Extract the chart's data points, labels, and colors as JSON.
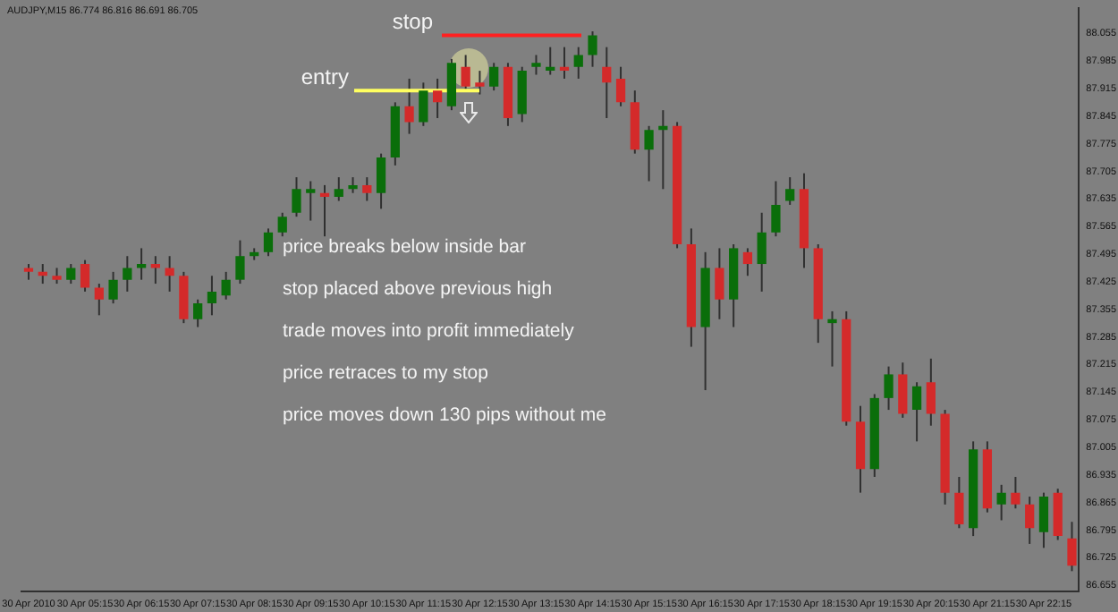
{
  "chart_data": {
    "type": "candlestick",
    "title": "AUDJPY,M15 86.774 86.816 86.691 86.705",
    "categories": [
      "30 Apr 2010",
      null,
      null,
      null,
      "30 Apr 05:15",
      null,
      null,
      null,
      "30 Apr 06:15",
      null,
      null,
      null,
      "30 Apr 07:15",
      null,
      null,
      null,
      "30 Apr 08:15",
      null,
      null,
      null,
      "30 Apr 09:15",
      null,
      null,
      null,
      "30 Apr 10:15",
      null,
      null,
      null,
      "30 Apr 11:15",
      null,
      null,
      null,
      "30 Apr 12:15",
      null,
      null,
      null,
      "30 Apr 13:15",
      null,
      null,
      null,
      "30 Apr 14:15",
      null,
      null,
      null,
      "30 Apr 15:15",
      null,
      null,
      null,
      "30 Apr 16:15",
      null,
      null,
      null,
      "30 Apr 17:15",
      null,
      null,
      null,
      "30 Apr 18:15",
      null,
      null,
      null,
      "30 Apr 19:15",
      null,
      null,
      null,
      "30 Apr 20:15",
      null,
      null,
      null,
      "30 Apr 21:15",
      null,
      null,
      null,
      "30 Apr 22:15",
      null,
      null
    ],
    "ohlc": [
      [
        87.46,
        87.47,
        87.43,
        87.45
      ],
      [
        87.45,
        87.47,
        87.42,
        87.44
      ],
      [
        87.44,
        87.46,
        87.42,
        87.43
      ],
      [
        87.43,
        87.47,
        87.42,
        87.46
      ],
      [
        87.47,
        87.48,
        87.4,
        87.41
      ],
      [
        87.41,
        87.42,
        87.34,
        87.38
      ],
      [
        87.38,
        87.45,
        87.37,
        87.43
      ],
      [
        87.43,
        87.49,
        87.4,
        87.46
      ],
      [
        87.46,
        87.51,
        87.43,
        87.47
      ],
      [
        87.47,
        87.49,
        87.42,
        87.46
      ],
      [
        87.46,
        87.49,
        87.4,
        87.44
      ],
      [
        87.44,
        87.45,
        87.32,
        87.33
      ],
      [
        87.33,
        87.38,
        87.31,
        87.37
      ],
      [
        87.37,
        87.44,
        87.34,
        87.4
      ],
      [
        87.39,
        87.45,
        87.38,
        87.43
      ],
      [
        87.43,
        87.53,
        87.42,
        87.49
      ],
      [
        87.49,
        87.51,
        87.48,
        87.5
      ],
      [
        87.5,
        87.56,
        87.49,
        87.55
      ],
      [
        87.55,
        87.6,
        87.54,
        87.59
      ],
      [
        87.6,
        87.69,
        87.59,
        87.66
      ],
      [
        87.65,
        87.68,
        87.58,
        87.66
      ],
      [
        87.65,
        87.67,
        87.54,
        87.64
      ],
      [
        87.64,
        87.69,
        87.63,
        87.66
      ],
      [
        87.66,
        87.69,
        87.65,
        87.67
      ],
      [
        87.67,
        87.69,
        87.63,
        87.65
      ],
      [
        87.65,
        87.75,
        87.61,
        87.74
      ],
      [
        87.74,
        87.88,
        87.72,
        87.87
      ],
      [
        87.87,
        87.94,
        87.8,
        87.83
      ],
      [
        87.83,
        87.93,
        87.82,
        87.91
      ],
      [
        87.91,
        87.94,
        87.84,
        87.88
      ],
      [
        87.87,
        87.99,
        87.86,
        87.98
      ],
      [
        87.97,
        88.0,
        87.91,
        87.92
      ],
      [
        87.93,
        87.96,
        87.9,
        87.92
      ],
      [
        87.92,
        87.98,
        87.91,
        87.97
      ],
      [
        87.97,
        87.98,
        87.82,
        87.84
      ],
      [
        87.85,
        87.97,
        87.83,
        87.96
      ],
      [
        87.97,
        88.0,
        87.95,
        87.98
      ],
      [
        87.96,
        88.02,
        87.95,
        87.97
      ],
      [
        87.97,
        88.02,
        87.94,
        87.96
      ],
      [
        87.97,
        88.02,
        87.94,
        88.0
      ],
      [
        88.0,
        88.06,
        87.97,
        88.05
      ],
      [
        87.97,
        88.02,
        87.84,
        87.93
      ],
      [
        87.94,
        87.97,
        87.87,
        87.88
      ],
      [
        87.88,
        87.91,
        87.75,
        87.76
      ],
      [
        87.76,
        87.82,
        87.68,
        87.81
      ],
      [
        87.81,
        87.86,
        87.66,
        87.82
      ],
      [
        87.82,
        87.83,
        87.51,
        87.52
      ],
      [
        87.52,
        87.56,
        87.26,
        87.31
      ],
      [
        87.31,
        87.5,
        87.15,
        87.46
      ],
      [
        87.46,
        87.51,
        87.33,
        87.38
      ],
      [
        87.38,
        87.52,
        87.31,
        87.51
      ],
      [
        87.5,
        87.51,
        87.44,
        87.47
      ],
      [
        87.47,
        87.6,
        87.4,
        87.55
      ],
      [
        87.55,
        87.68,
        87.54,
        87.62
      ],
      [
        87.63,
        87.69,
        87.62,
        87.66
      ],
      [
        87.66,
        87.7,
        87.46,
        87.51
      ],
      [
        87.51,
        87.52,
        87.27,
        87.33
      ],
      [
        87.32,
        87.35,
        87.21,
        87.33
      ],
      [
        87.33,
        87.35,
        87.06,
        87.07
      ],
      [
        87.07,
        87.11,
        86.89,
        86.95
      ],
      [
        86.95,
        87.14,
        86.93,
        87.13
      ],
      [
        87.13,
        87.21,
        87.1,
        87.19
      ],
      [
        87.19,
        87.22,
        87.08,
        87.09
      ],
      [
        87.1,
        87.17,
        87.02,
        87.16
      ],
      [
        87.17,
        87.23,
        87.06,
        87.09
      ],
      [
        87.09,
        87.1,
        86.86,
        86.89
      ],
      [
        86.89,
        86.93,
        86.8,
        86.81
      ],
      [
        86.8,
        87.02,
        86.78,
        87.0
      ],
      [
        87.0,
        87.02,
        86.84,
        86.85
      ],
      [
        86.86,
        86.91,
        86.82,
        86.89
      ],
      [
        86.89,
        86.93,
        86.85,
        86.86
      ],
      [
        86.86,
        86.88,
        86.76,
        86.8
      ],
      [
        86.79,
        86.89,
        86.75,
        86.88
      ],
      [
        86.89,
        86.9,
        86.77,
        86.78
      ],
      [
        86.774,
        86.816,
        86.691,
        86.705
      ]
    ],
    "colors": [
      "#d42a2a",
      "#d42a2a",
      "#d42a2a",
      "#0a6e0a",
      "#d42a2a",
      "#d42a2a",
      "#0a6e0a",
      "#0a6e0a",
      "#0a6e0a",
      "#d42a2a",
      "#d42a2a",
      "#d42a2a",
      "#0a6e0a",
      "#0a6e0a",
      "#0a6e0a",
      "#0a6e0a",
      "#0a6e0a",
      "#0a6e0a",
      "#0a6e0a",
      "#0a6e0a",
      "#0a6e0a",
      "#d42a2a",
      "#0a6e0a",
      "#0a6e0a",
      "#d42a2a",
      "#0a6e0a",
      "#0a6e0a",
      "#d42a2a",
      "#0a6e0a",
      "#d42a2a",
      "#0a6e0a",
      "#d42a2a",
      "#d42a2a",
      "#0a6e0a",
      "#d42a2a",
      "#0a6e0a",
      "#0a6e0a",
      "#0a6e0a",
      "#d42a2a",
      "#0a6e0a",
      "#0a6e0a",
      "#d42a2a",
      "#d42a2a",
      "#d42a2a",
      "#0a6e0a",
      "#0a6e0a",
      "#d42a2a",
      "#d42a2a",
      "#0a6e0a",
      "#d42a2a",
      "#0a6e0a",
      "#d42a2a",
      "#0a6e0a",
      "#0a6e0a",
      "#0a6e0a",
      "#d42a2a",
      "#d42a2a",
      "#0a6e0a",
      "#d42a2a",
      "#d42a2a",
      "#0a6e0a",
      "#0a6e0a",
      "#d42a2a",
      "#0a6e0a",
      "#d42a2a",
      "#d42a2a",
      "#d42a2a",
      "#0a6e0a",
      "#d42a2a",
      "#0a6e0a",
      "#d42a2a",
      "#d42a2a",
      "#0a6e0a",
      "#d42a2a",
      "#d42a2a"
    ],
    "ylim": [
      86.64,
      88.12
    ],
    "yticks": [
      86.655,
      86.725,
      86.795,
      86.865,
      86.935,
      87.005,
      87.075,
      87.145,
      87.215,
      87.285,
      87.355,
      87.425,
      87.495,
      87.565,
      87.635,
      87.705,
      87.775,
      87.845,
      87.915,
      87.985,
      88.055
    ],
    "ref_lines": [
      {
        "axis": "y",
        "value": 88.05,
        "label": "stop",
        "color": "#ff2020"
      },
      {
        "axis": "y",
        "value": 87.91,
        "label": "entry",
        "color": "#ffff60"
      }
    ],
    "annotations": [
      "price breaks below inside bar",
      "stop placed above previous high",
      "trade moves into profit immediately",
      "price retraces to my stop",
      "price moves down 130 pips without me"
    ]
  }
}
